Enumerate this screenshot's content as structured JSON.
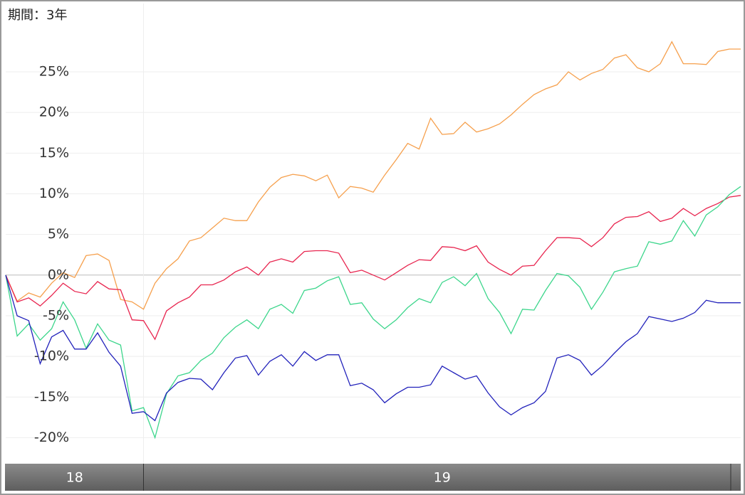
{
  "chart_data": {
    "type": "line",
    "title": "期間：3年",
    "categories": [
      "18",
      null,
      null,
      null,
      null,
      null,
      null,
      null,
      null,
      null,
      null,
      null,
      "19",
      null,
      null,
      null,
      null,
      null,
      null,
      null,
      null,
      null,
      null,
      null,
      null,
      null,
      null,
      null,
      null,
      null,
      null,
      null,
      null,
      null,
      null,
      null,
      null,
      null,
      null,
      null,
      null,
      null,
      null,
      null,
      null,
      null,
      null,
      null,
      null,
      null,
      null,
      null,
      null,
      null,
      null,
      null,
      null,
      null,
      null,
      null,
      null,
      null,
      null,
      null,
      null
    ],
    "series": [
      {
        "color": "#f6a04d",
        "values": [
          0,
          -3.2,
          -2.2,
          -2.7,
          -1,
          0.3,
          -0.3,
          2.4,
          2.6,
          1.8,
          -3,
          -3.3,
          -4.2,
          -1,
          0.8,
          2,
          4.2,
          4.6,
          5.8,
          7,
          6.7,
          6.7,
          9,
          10.8,
          12,
          12.4,
          12.2,
          11.6,
          12.3,
          9.5,
          10.9,
          10.7,
          10.2,
          12.3,
          14.2,
          16.2,
          15.5,
          19.3,
          17.3,
          17.4,
          18.8,
          17.6,
          18,
          18.6,
          19.7,
          21,
          22.2,
          22.9,
          23.4,
          25,
          24,
          24.8,
          25.3,
          26.7,
          27.1,
          25.5,
          25,
          26,
          28.7,
          26,
          26,
          25.9,
          27.5,
          27.8,
          27.8
        ]
      },
      {
        "color": "#e8254f",
        "values": [
          0,
          -3.3,
          -2.8,
          -3.8,
          -2.5,
          -1,
          -2,
          -2.3,
          -0.8,
          -1.7,
          -1.8,
          -5.5,
          -5.6,
          -7.9,
          -4.4,
          -3.4,
          -2.7,
          -1.2,
          -1.2,
          -0.6,
          0.4,
          1,
          0,
          1.6,
          2,
          1.6,
          2.9,
          3,
          3,
          2.7,
          0.3,
          0.6,
          0,
          -0.6,
          0.3,
          1.2,
          1.9,
          1.8,
          3.5,
          3.4,
          3,
          3.6,
          1.6,
          0.7,
          0,
          1.1,
          1.2,
          3,
          4.6,
          4.6,
          4.5,
          3.5,
          4.6,
          6.3,
          7.1,
          7.2,
          7.8,
          6.6,
          7,
          8.2,
          7.3,
          8.2,
          8.8,
          9.6,
          9.8
        ]
      },
      {
        "color": "#3dd68c",
        "values": [
          0,
          -7.5,
          -6,
          -8,
          -6.6,
          -3.3,
          -5.5,
          -9,
          -6,
          -8,
          -8.6,
          -16.7,
          -16.3,
          -20,
          -14.6,
          -12.4,
          -12,
          -10.5,
          -9.6,
          -7.7,
          -6.4,
          -5.5,
          -6.6,
          -4.2,
          -3.6,
          -4.7,
          -1.9,
          -1.6,
          -0.7,
          -0.2,
          -3.6,
          -3.4,
          -5.4,
          -6.6,
          -5.5,
          -4,
          -2.9,
          -3.4,
          -0.9,
          -0.2,
          -1.3,
          0.2,
          -2.9,
          -4.6,
          -7.2,
          -4.2,
          -4.3,
          -1.9,
          0.2,
          -0.1,
          -1.5,
          -4.2,
          -2.1,
          0.4,
          0.8,
          1.1,
          4.1,
          3.8,
          4.2,
          6.7,
          4.8,
          7.4,
          8.4,
          9.9,
          10.9
        ]
      },
      {
        "color": "#2222bb",
        "values": [
          0,
          -5,
          -5.6,
          -10.9,
          -7.6,
          -6.8,
          -9.1,
          -9.1,
          -7.1,
          -9.5,
          -11.2,
          -17,
          -16.8,
          -17.9,
          -14.5,
          -13.2,
          -12.7,
          -12.8,
          -14.1,
          -12,
          -10.2,
          -9.9,
          -12.3,
          -10.6,
          -9.8,
          -11.2,
          -9.4,
          -10.5,
          -9.8,
          -9.8,
          -13.6,
          -13.3,
          -14.1,
          -15.7,
          -14.6,
          -13.8,
          -13.8,
          -13.5,
          -11.2,
          -12,
          -12.8,
          -12.4,
          -14.5,
          -16.2,
          -17.2,
          -16.3,
          -15.7,
          -14.3,
          -10.2,
          -9.8,
          -10.5,
          -12.3,
          -11.1,
          -9.6,
          -8.2,
          -7.2,
          -5.1,
          -5.4,
          -5.7,
          -5.3,
          -4.6,
          -3.1,
          -3.4,
          -3.4,
          -3.4
        ]
      }
    ],
    "ylim": [
      -23.2,
      33.4
    ],
    "yticks": [
      {
        "value": -20,
        "label": "-20%"
      },
      {
        "value": -15,
        "label": "-15%"
      },
      {
        "value": -10,
        "label": "-10%"
      },
      {
        "value": -5,
        "label": "-5%"
      },
      {
        "value": 0,
        "label": "0%"
      },
      {
        "value": 5,
        "label": "5%"
      },
      {
        "value": 10,
        "label": "10%"
      },
      {
        "value": 15,
        "label": "15%"
      },
      {
        "value": 20,
        "label": "20%"
      },
      {
        "value": 25,
        "label": "25%"
      }
    ],
    "grid": true
  }
}
